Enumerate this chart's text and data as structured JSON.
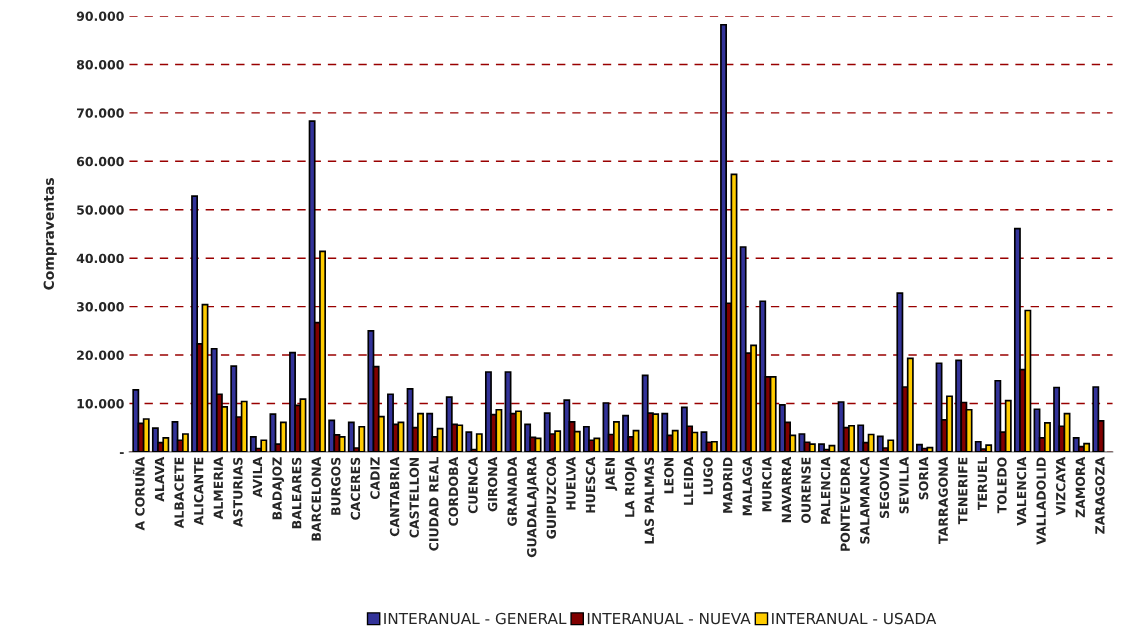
{
  "chart_data": {
    "type": "bar",
    "ylabel": "Compraventas",
    "categories": [
      "A CORUÑA",
      "ALAVA",
      "ALBACETE",
      "ALICANTE",
      "ALMERIA",
      "ASTURIAS",
      "AVILA",
      "BADAJOZ",
      "BALEARES",
      "BARCELONA",
      "BURGOS",
      "CACERES",
      "CADIZ",
      "CANTABRIA",
      "CASTELLON",
      "CIUDAD REAL",
      "CORDOBA",
      "CUENCA",
      "GIRONA",
      "GRANADA",
      "GUADALAJARA",
      "GUIPUZCOA",
      "HUELVA",
      "HUESCA",
      "JAEN",
      "LA RIOJA",
      "LAS PALMAS",
      "LEON",
      "LLEIDA",
      "LUGO",
      "MADRID",
      "MALAGA",
      "MURCIA",
      "NAVARRA",
      "OURENSE",
      "PALENCIA",
      "PONTEVEDRA",
      "SALAMANCA",
      "SEGOVIA",
      "SEVILLA",
      "SORIA",
      "TARRAGONA",
      "TENERIFE",
      "TERUEL",
      "TOLEDO",
      "VALENCIA",
      "VALLADOLID",
      "VIZCAYA",
      "ZAMORA",
      "ZARAGOZA"
    ],
    "series": [
      {
        "name": "INTERANUAL - GENERAL",
        "color": "#333399",
        "values": [
          12800,
          4900,
          6200,
          52800,
          21300,
          17700,
          3100,
          7800,
          20500,
          68300,
          6500,
          6100,
          25000,
          11900,
          13000,
          7900,
          11300,
          4100,
          16500,
          16500,
          5700,
          8000,
          10700,
          5200,
          10100,
          7500,
          15800,
          7900,
          9200,
          4100,
          88200,
          42300,
          31100,
          9700,
          3700,
          1600,
          10300,
          5500,
          3200,
          32800,
          1500,
          18300,
          18900,
          2100,
          14700,
          46100,
          8800,
          13300,
          2900,
          13400
        ]
      },
      {
        "name": "INTERANUAL - NUEVA",
        "color": "#800000",
        "values": [
          5900,
          1900,
          2400,
          22300,
          11900,
          7200,
          700,
          1600,
          9600,
          26700,
          3500,
          800,
          17600,
          5700,
          5000,
          3100,
          5700,
          500,
          7700,
          7900,
          3000,
          3700,
          6200,
          2400,
          3600,
          3100,
          8000,
          3400,
          5300,
          2000,
          30700,
          20400,
          15500,
          6100,
          2000,
          500,
          5000,
          1900,
          800,
          13400,
          700,
          6600,
          10200,
          600,
          4100,
          17000,
          2900,
          5300,
          1100,
          6400
        ]
      },
      {
        "name": "INTERANUAL - USADA",
        "color": "#ffcc00",
        "values": [
          6800,
          2900,
          3700,
          30400,
          9300,
          10400,
          2400,
          6100,
          10900,
          41400,
          3100,
          5200,
          7300,
          6100,
          7900,
          4800,
          5500,
          3700,
          8700,
          8400,
          2800,
          4300,
          4200,
          2800,
          6200,
          4400,
          7800,
          4400,
          4000,
          2100,
          57300,
          22000,
          15500,
          3400,
          1600,
          1300,
          5400,
          3600,
          2400,
          19300,
          900,
          11500,
          8700,
          1400,
          10600,
          29200,
          6000,
          7900,
          1700,
          null
        ]
      }
    ],
    "ylim": [
      0,
      90000
    ],
    "yticks": [
      {
        "value": 0,
        "label": "-"
      },
      {
        "value": 10000,
        "label": "10.000"
      },
      {
        "value": 20000,
        "label": "20.000"
      },
      {
        "value": 30000,
        "label": "30.000"
      },
      {
        "value": 40000,
        "label": "40.000"
      },
      {
        "value": 50000,
        "label": "50.000"
      },
      {
        "value": 60000,
        "label": "60.000"
      },
      {
        "value": 70000,
        "label": "70.000"
      },
      {
        "value": 80000,
        "label": "80.000"
      },
      {
        "value": 90000,
        "label": "90.000"
      }
    ],
    "grid": "y",
    "legend": "bottom"
  }
}
